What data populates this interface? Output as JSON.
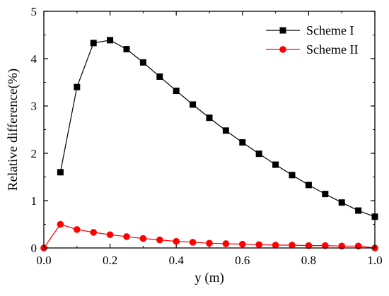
{
  "chart_data": {
    "type": "line",
    "title": "",
    "xlabel": "y (m)",
    "ylabel": "Relative difference(%)",
    "xlim": [
      0.0,
      1.0
    ],
    "ylim": [
      0,
      5
    ],
    "xticks": [
      "0.0",
      "0.2",
      "0.4",
      "0.6",
      "0.8",
      "1.0"
    ],
    "yticks": [
      "0",
      "1",
      "2",
      "3",
      "4",
      "5"
    ],
    "grid": false,
    "legend_position": "top-right",
    "series": [
      {
        "name": "Scheme I",
        "color": "#000000",
        "marker": "square",
        "x": [
          0.05,
          0.1,
          0.15,
          0.2,
          0.25,
          0.3,
          0.35,
          0.4,
          0.45,
          0.5,
          0.55,
          0.6,
          0.65,
          0.7,
          0.75,
          0.8,
          0.85,
          0.9,
          0.95,
          1.0
        ],
        "y": [
          1.6,
          3.4,
          4.33,
          4.39,
          4.2,
          3.92,
          3.62,
          3.32,
          3.03,
          2.75,
          2.48,
          2.23,
          1.99,
          1.76,
          1.54,
          1.33,
          1.14,
          0.96,
          0.79,
          0.66
        ]
      },
      {
        "name": "Scheme II",
        "color": "#ff0000",
        "marker": "circle",
        "x": [
          0.0,
          0.05,
          0.1,
          0.15,
          0.2,
          0.25,
          0.3,
          0.35,
          0.4,
          0.45,
          0.5,
          0.55,
          0.6,
          0.65,
          0.7,
          0.75,
          0.8,
          0.85,
          0.9,
          0.95,
          1.0
        ],
        "y": [
          0.0,
          0.5,
          0.39,
          0.33,
          0.28,
          0.24,
          0.2,
          0.17,
          0.14,
          0.12,
          0.1,
          0.09,
          0.08,
          0.07,
          0.06,
          0.06,
          0.05,
          0.05,
          0.04,
          0.04,
          0.0
        ]
      }
    ]
  }
}
